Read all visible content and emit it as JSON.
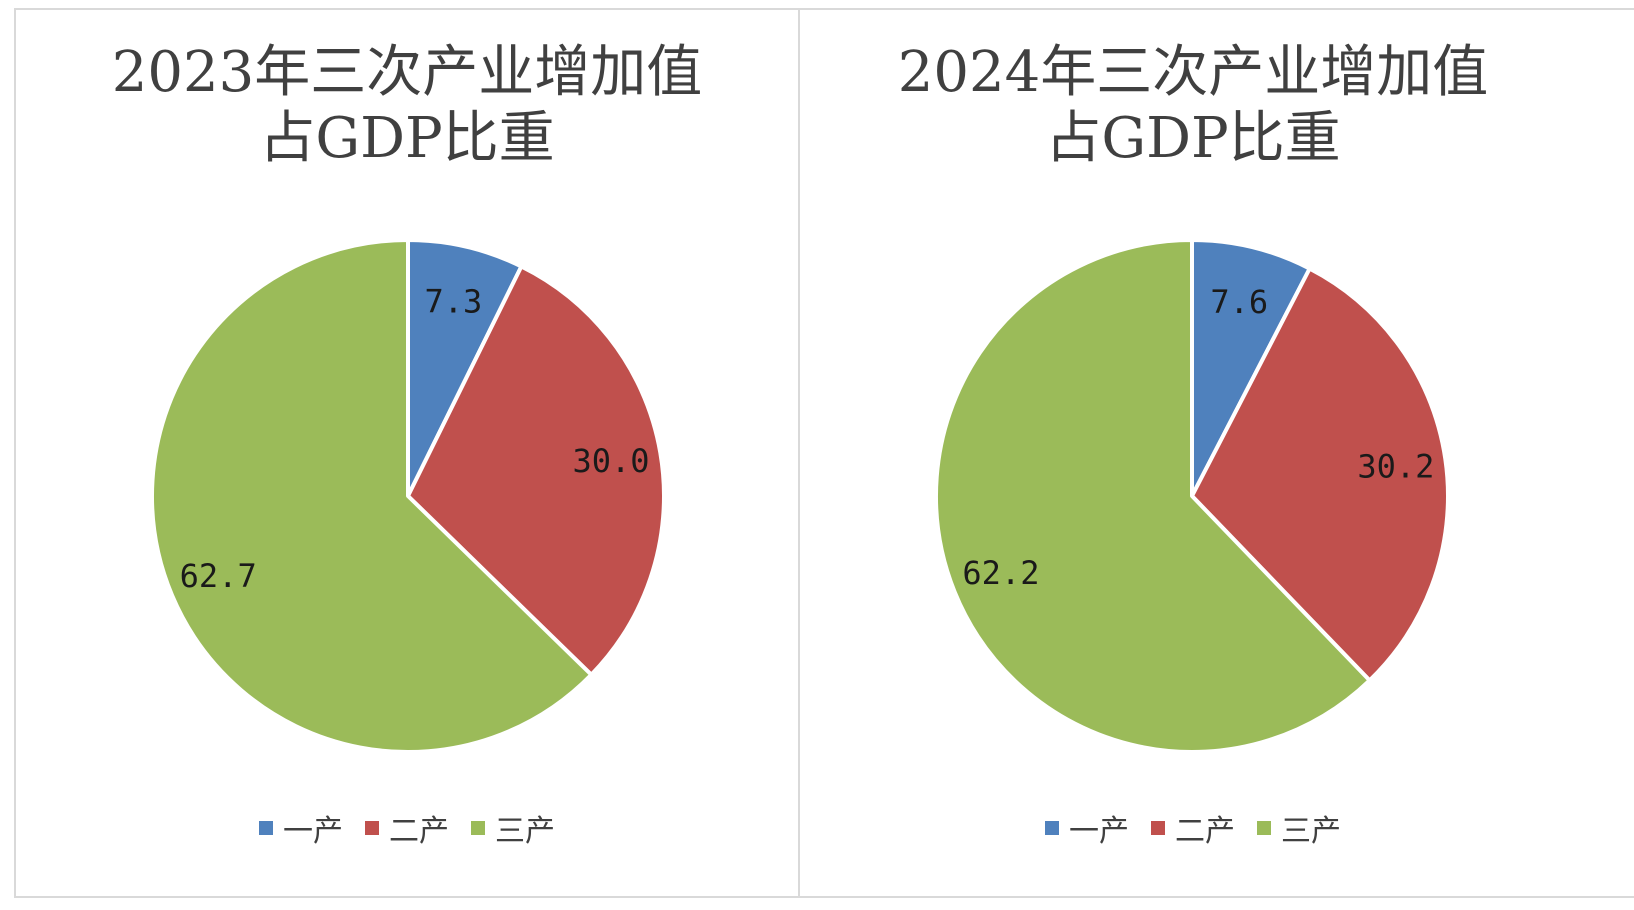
{
  "chart_data": [
    {
      "type": "pie",
      "title_lines": [
        "2023年三次产业增加值",
        "占GDP比重"
      ],
      "categories": [
        "一产",
        "二产",
        "三产"
      ],
      "values": [
        7.3,
        30.0,
        62.7
      ],
      "value_labels": [
        "7.3",
        "30.0",
        "62.7"
      ],
      "colors": [
        "#4f81bd",
        "#c0504d",
        "#9bbb59"
      ],
      "legend_position": "bottom"
    },
    {
      "type": "pie",
      "title_lines": [
        "2024年三次产业增加值",
        "占GDP比重"
      ],
      "categories": [
        "一产",
        "二产",
        "三产"
      ],
      "values": [
        7.6,
        30.2,
        62.2
      ],
      "value_labels": [
        "7.6",
        "30.2",
        "62.2"
      ],
      "colors": [
        "#4f81bd",
        "#c0504d",
        "#9bbb59"
      ],
      "legend_position": "bottom"
    }
  ]
}
